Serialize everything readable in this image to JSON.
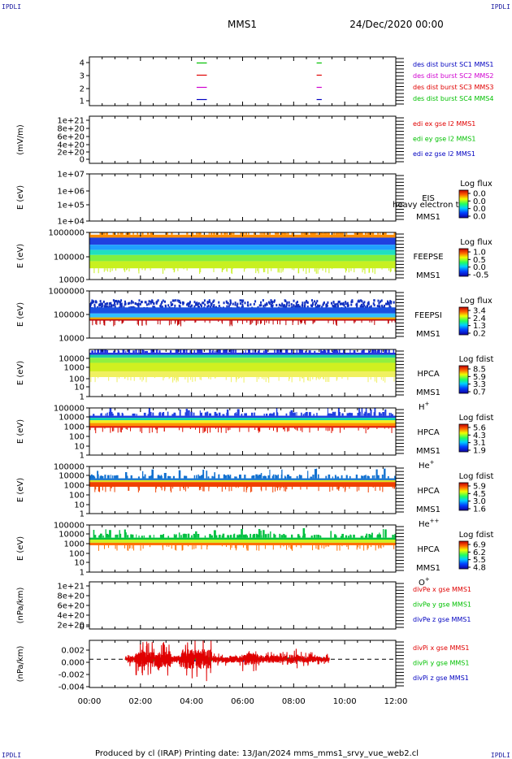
{
  "header": {
    "corner_label": "IPDLI",
    "spacecraft": "MMS1",
    "datetime": "24/Dec/2020 00:00"
  },
  "footer": {
    "text": "Produced by cl (IRAP)   Printing date: 13/Jan/2024   mms_mms1_srvy_vue_web2.cl"
  },
  "time_axis": {
    "ticks": [
      "00:00",
      "02:00",
      "04:00",
      "06:00",
      "08:00",
      "10:00",
      "12:00"
    ],
    "range_hours": [
      0,
      12
    ]
  },
  "colors": {
    "red": "#e00000",
    "green": "#00c000",
    "blue": "#0000c0",
    "magenta": "#d000d0"
  },
  "panels": [
    {
      "id": "des-dist",
      "ylabel": "",
      "yticks": [
        "4",
        "3",
        "2",
        "1"
      ],
      "legend": [
        {
          "text": "des dist burst SC1 MMS1",
          "color": "#0000c0"
        },
        {
          "text": "des dist burst SC2 MMS2",
          "color": "#d000d0"
        },
        {
          "text": "des dist burst SC3 MMS3",
          "color": "#e00000"
        },
        {
          "text": "des dist burst SC4 MMS4",
          "color": "#00c000"
        }
      ]
    },
    {
      "id": "edi",
      "ylabel": "(mV/m)",
      "yticks": [
        "1e+21",
        "8e+20",
        "6e+20",
        "4e+20",
        "2e+20",
        "0"
      ],
      "legend": [
        {
          "text": "edi ex gse l2 MMS1",
          "color": "#e00000"
        },
        {
          "text": "edi ey gse l2 MMS1",
          "color": "#00c000"
        },
        {
          "text": "edi ez gse l2 MMS1",
          "color": "#0000c0"
        }
      ]
    },
    {
      "id": "eis",
      "ylabel": "E (eV)",
      "yticks": [
        "1e+07",
        "1e+06",
        "1e+05",
        "1e+04"
      ],
      "instrument": "EIS",
      "instrument_overlap": "heavy electron to",
      "sc": "MMS1",
      "colorbar_title": "Log flux",
      "colorbar_ticks": [
        "0.0",
        "0.0",
        "0.0",
        "0.0"
      ]
    },
    {
      "id": "feepse",
      "ylabel": "E (eV)",
      "yticks": [
        "1000000",
        "100000",
        "10000"
      ],
      "instrument": "FEEPSE",
      "sc": "MMS1",
      "colorbar_title": "Log flux",
      "colorbar_ticks": [
        "1.0",
        "0.5",
        "0.0",
        "-0.5"
      ]
    },
    {
      "id": "feepsi",
      "ylabel": "E (eV)",
      "yticks": [
        "1000000",
        "100000",
        "10000"
      ],
      "instrument": "FEEPSI",
      "sc": "MMS1",
      "colorbar_title": "Log flux",
      "colorbar_ticks": [
        "3.4",
        "2.4",
        "1.3",
        "0.2"
      ]
    },
    {
      "id": "hpca-h",
      "ylabel": "E (eV)",
      "yticks": [
        "10000",
        "1000",
        "100",
        "10",
        "1"
      ],
      "instrument": "HPCA",
      "sc": "MMS1",
      "species": "H",
      "species_sup": "+",
      "colorbar_title": "Log fdist",
      "colorbar_ticks": [
        "8.5",
        "5.9",
        "3.3",
        "0.7"
      ]
    },
    {
      "id": "hpca-he",
      "ylabel": "E (eV)",
      "yticks": [
        "100000",
        "10000",
        "1000",
        "100",
        "10",
        "1"
      ],
      "instrument": "HPCA",
      "sc": "MMS1",
      "species": "He",
      "species_sup": "+",
      "colorbar_title": "Log fdist",
      "colorbar_ticks": [
        "5.6",
        "4.3",
        "3.1",
        "1.9"
      ]
    },
    {
      "id": "hpca-hepp",
      "ylabel": "E (eV)",
      "yticks": [
        "100000",
        "10000",
        "1000",
        "100",
        "10",
        "1"
      ],
      "instrument": "HPCA",
      "sc": "MMS1",
      "species": "He",
      "species_sup": "++",
      "colorbar_title": "Log fdist",
      "colorbar_ticks": [
        "5.9",
        "4.5",
        "3.0",
        "1.6"
      ]
    },
    {
      "id": "hpca-o",
      "ylabel": "E (eV)",
      "yticks": [
        "100000",
        "10000",
        "1000",
        "100",
        "10",
        "1"
      ],
      "instrument": "HPCA",
      "sc": "MMS1",
      "species": "O",
      "species_sup": "+",
      "colorbar_title": "Log fdist",
      "colorbar_ticks": [
        "6.9",
        "6.2",
        "5.5",
        "4.8"
      ]
    },
    {
      "id": "divpe",
      "ylabel": "(nPa/km)",
      "yticks": [
        "1e+21",
        "8e+20",
        "6e+20",
        "4e+20",
        "2e+20",
        "0"
      ],
      "legend": [
        {
          "text": "divPe x gse MMS1",
          "color": "#e00000"
        },
        {
          "text": "divPe y gse MMS1",
          "color": "#00c000"
        },
        {
          "text": "divPe z gse MMS1",
          "color": "#0000c0"
        }
      ]
    },
    {
      "id": "divpi",
      "ylabel": "(nPa/km)",
      "yticks": [
        "0.002",
        "0.000",
        "-0.002",
        "-0.004"
      ],
      "legend": [
        {
          "text": "divPi x gse MMS1",
          "color": "#e00000"
        },
        {
          "text": "divPi y gse MMS1",
          "color": "#00c000"
        },
        {
          "text": "divPi z gse MMS1",
          "color": "#0000c0"
        }
      ]
    }
  ],
  "chart_data": [
    {
      "type": "scatter",
      "panel": "des-dist",
      "yrange": [
        0.5,
        4.5
      ],
      "series": [
        {
          "name": "des dist burst SC1 MMS1",
          "color": "#0000c0",
          "y": 1,
          "segments": [
            [
              4.2,
              4.6
            ],
            [
              8.9,
              9.1
            ]
          ]
        },
        {
          "name": "des dist burst SC2 MMS2",
          "color": "#d000d0",
          "y": 2,
          "segments": [
            [
              4.2,
              4.6
            ],
            [
              8.9,
              9.1
            ]
          ]
        },
        {
          "name": "des dist burst SC3 MMS3",
          "color": "#e00000",
          "y": 3,
          "segments": [
            [
              4.2,
              4.6
            ],
            [
              8.9,
              9.1
            ]
          ]
        },
        {
          "name": "des dist burst SC4 MMS4",
          "color": "#00c000",
          "y": 4,
          "segments": [
            [
              4.2,
              4.6
            ],
            [
              8.9,
              9.1
            ]
          ]
        }
      ]
    },
    {
      "type": "line",
      "panel": "edi",
      "ylim": [
        0,
        1e+21
      ],
      "reference_line": 0,
      "series": []
    },
    {
      "type": "heatmap",
      "panel": "eis",
      "ylim": [
        10000.0,
        10000000.0
      ],
      "log_y": true,
      "bands": []
    },
    {
      "type": "heatmap",
      "panel": "feepse",
      "ylim": [
        10000.0,
        1000000.0
      ],
      "log_y": true,
      "x_range": [
        0,
        12
      ],
      "bands": [
        {
          "e_low": 600000,
          "e_high": 800000,
          "color": "#ff8c00"
        },
        {
          "e_low": 300000,
          "e_high": 600000,
          "color": "#2040e0"
        },
        {
          "e_low": 180000,
          "e_high": 300000,
          "color": "#20a0ff"
        },
        {
          "e_low": 110000,
          "e_high": 180000,
          "color": "#20e0c0"
        },
        {
          "e_low": 60000,
          "e_high": 110000,
          "color": "#80f040"
        },
        {
          "e_low": 30000,
          "e_high": 60000,
          "color": "#c8f020"
        }
      ]
    },
    {
      "type": "heatmap",
      "panel": "feepsi",
      "ylim": [
        10000.0,
        1000000.0
      ],
      "log_y": true,
      "x_range": [
        0,
        12
      ],
      "bands": [
        {
          "e_low": 200000,
          "e_high": 450000,
          "color": "#ffffff",
          "speckle": "#1030c0"
        },
        {
          "e_low": 110000,
          "e_high": 200000,
          "color": "#1a50e0"
        },
        {
          "e_low": 75000,
          "e_high": 110000,
          "color": "#30c0ff"
        },
        {
          "e_low": 62000,
          "e_high": 75000,
          "color": "#e0a000"
        },
        {
          "e_low": 55000,
          "e_high": 62000,
          "color": "#c00000"
        }
      ]
    },
    {
      "type": "heatmap",
      "panel": "hpca-h",
      "ylim": [
        1,
        20000
      ],
      "log_y": true,
      "x_range": [
        0,
        12
      ],
      "bands": [
        {
          "e_low": 6500,
          "e_high": 10000,
          "color": "#2030e0"
        },
        {
          "e_low": 3500,
          "e_high": 6500,
          "color": "#20d0a0"
        },
        {
          "e_low": 1200,
          "e_high": 3500,
          "color": "#90f040"
        },
        {
          "e_low": 200,
          "e_high": 1200,
          "color": "#d0f020"
        },
        {
          "e_low": 60,
          "e_high": 200,
          "color": "#f0f060"
        }
      ]
    },
    {
      "type": "heatmap",
      "panel": "hpca-he",
      "ylim": [
        1,
        100000
      ],
      "log_y": true,
      "x_range": [
        0,
        12
      ],
      "bands": [
        {
          "e_low": 9000,
          "e_high": 15000,
          "color": "#2040e0"
        },
        {
          "e_low": 5000,
          "e_high": 9000,
          "color": "#10d0b0"
        },
        {
          "e_low": 2500,
          "e_high": 5000,
          "color": "#f0f020"
        },
        {
          "e_low": 1200,
          "e_high": 2500,
          "color": "#ff9000"
        },
        {
          "e_low": 800,
          "e_high": 1200,
          "color": "#e01000"
        }
      ]
    },
    {
      "type": "heatmap",
      "panel": "hpca-hepp",
      "ylim": [
        1,
        100000
      ],
      "log_y": true,
      "x_range": [
        0,
        12
      ],
      "bands": [
        {
          "e_low": 3500,
          "e_high": 5500,
          "color": "#1070d0"
        },
        {
          "e_low": 2200,
          "e_high": 3500,
          "color": "#e0e020"
        },
        {
          "e_low": 700,
          "e_high": 2200,
          "color": "#f04000"
        }
      ]
    },
    {
      "type": "heatmap",
      "panel": "hpca-o",
      "ylim": [
        1,
        100000
      ],
      "log_y": true,
      "x_range": [
        0,
        12
      ],
      "bands": [
        {
          "e_low": 2800,
          "e_high": 4500,
          "color": "#00c040"
        },
        {
          "e_low": 1300,
          "e_high": 2800,
          "color": "#d0f020"
        },
        {
          "e_low": 700,
          "e_high": 1300,
          "color": "#ff7000"
        }
      ]
    },
    {
      "type": "line",
      "panel": "divpe",
      "ylim": [
        0,
        1e+21
      ],
      "reference_line": 0,
      "series": []
    },
    {
      "type": "line",
      "panel": "divpi",
      "ylim": [
        -0.0045,
        0.003
      ],
      "reference_line": 0,
      "x_range": [
        1.4,
        9.4
      ],
      "series": [
        {
          "name": "divPi x gse MMS1",
          "color": "#e00000",
          "amplitude_max": 0.0035
        },
        {
          "name": "divPi y gse MMS1",
          "color": "#00c000",
          "amplitude_max": 0.0006
        },
        {
          "name": "divPi z gse MMS1",
          "color": "#0000c0",
          "amplitude_max": 0.0008
        }
      ]
    }
  ]
}
